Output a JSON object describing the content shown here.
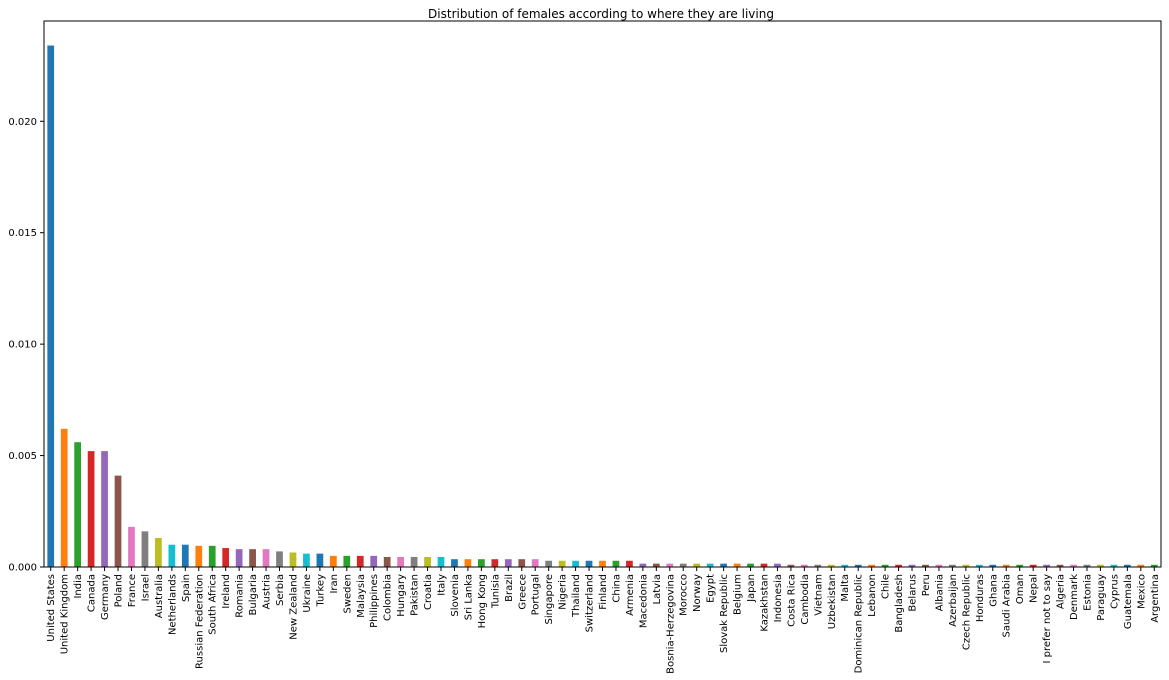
{
  "chart_data": {
    "type": "bar",
    "title": "Distribution of females according to where they are living",
    "xlabel": "",
    "ylabel": "",
    "ylim": [
      0,
      0.0245
    ],
    "y_ticks": [
      0.0,
      0.005,
      0.01,
      0.015,
      0.02
    ],
    "y_tick_labels": [
      "0.000",
      "0.005",
      "0.010",
      "0.015",
      "0.020"
    ],
    "categories": [
      "United States",
      "United Kingdom",
      "India",
      "Canada",
      "Germany",
      "Poland",
      "France",
      "Israel",
      "Australia",
      "Netherlands",
      "Spain",
      "Russian Federation",
      "South Africa",
      "Ireland",
      "Romania",
      "Bulgaria",
      "Austria",
      "Serbia",
      "New Zealand",
      "Ukraine",
      "Turkey",
      "Iran",
      "Sweden",
      "Malaysia",
      "Philippines",
      "Colombia",
      "Hungary",
      "Pakistan",
      "Croatia",
      "Italy",
      "Slovenia",
      "Sri Lanka",
      "Hong Kong",
      "Tunisia",
      "Brazil",
      "Greece",
      "Portugal",
      "Singapore",
      "Nigeria",
      "Thailand",
      "Switzerland",
      "Finland",
      "China",
      "Armenia",
      "Macedonia",
      "Latvia",
      "Bosnia-Herzegovina",
      "Morocco",
      "Norway",
      "Egypt",
      "Slovak Republic",
      "Belgium",
      "Japan",
      "Kazakhstan",
      "Indonesia",
      "Costa Rica",
      "Cambodia",
      "Vietnam",
      "Uzbekistan",
      "Malta",
      "Dominican Republic",
      "Lebanon",
      "Chile",
      "Bangladesh",
      "Belarus",
      "Peru",
      "Albania",
      "Azerbaijan",
      "Czech Republic",
      "Honduras",
      "Ghana",
      "Saudi Arabia",
      "Oman",
      "Nepal",
      "I prefer not to say",
      "Algeria",
      "Denmark",
      "Estonia",
      "Paraguay",
      "Cyprus",
      "Guatemala",
      "Mexico",
      "Argentina"
    ],
    "values": [
      0.0234,
      0.0062,
      0.0056,
      0.0052,
      0.0052,
      0.0041,
      0.0018,
      0.0016,
      0.0013,
      0.001,
      0.001,
      0.00095,
      0.00095,
      0.00085,
      0.0008,
      0.0008,
      0.0008,
      0.0007,
      0.00065,
      0.0006,
      0.0006,
      0.0005,
      0.0005,
      0.0005,
      0.0005,
      0.00045,
      0.00045,
      0.00045,
      0.00045,
      0.00045,
      0.00035,
      0.00035,
      0.00035,
      0.00035,
      0.00035,
      0.00035,
      0.00035,
      0.00028,
      0.00028,
      0.00028,
      0.00028,
      0.00028,
      0.00028,
      0.00028,
      0.00015,
      0.00015,
      0.00015,
      0.00015,
      0.00015,
      0.00015,
      0.00015,
      0.00015,
      0.00015,
      0.00015,
      0.00015,
      0.0001,
      0.0001,
      0.0001,
      0.0001,
      0.0001,
      0.0001,
      0.0001,
      0.0001,
      0.0001,
      0.0001,
      0.0001,
      0.0001,
      0.0001,
      0.0001,
      0.0001,
      0.0001,
      0.0001,
      0.0001,
      0.0001,
      0.0001,
      0.0001,
      0.0001,
      0.0001,
      0.0001,
      0.0001,
      0.0001,
      0.0001,
      0.0001
    ],
    "palette": [
      "#1f77b4",
      "#ff7f0e",
      "#2ca02c",
      "#d62728",
      "#9467bd",
      "#8c564b",
      "#e377c2",
      "#7f7f7f",
      "#bcbd22",
      "#17becf"
    ]
  }
}
